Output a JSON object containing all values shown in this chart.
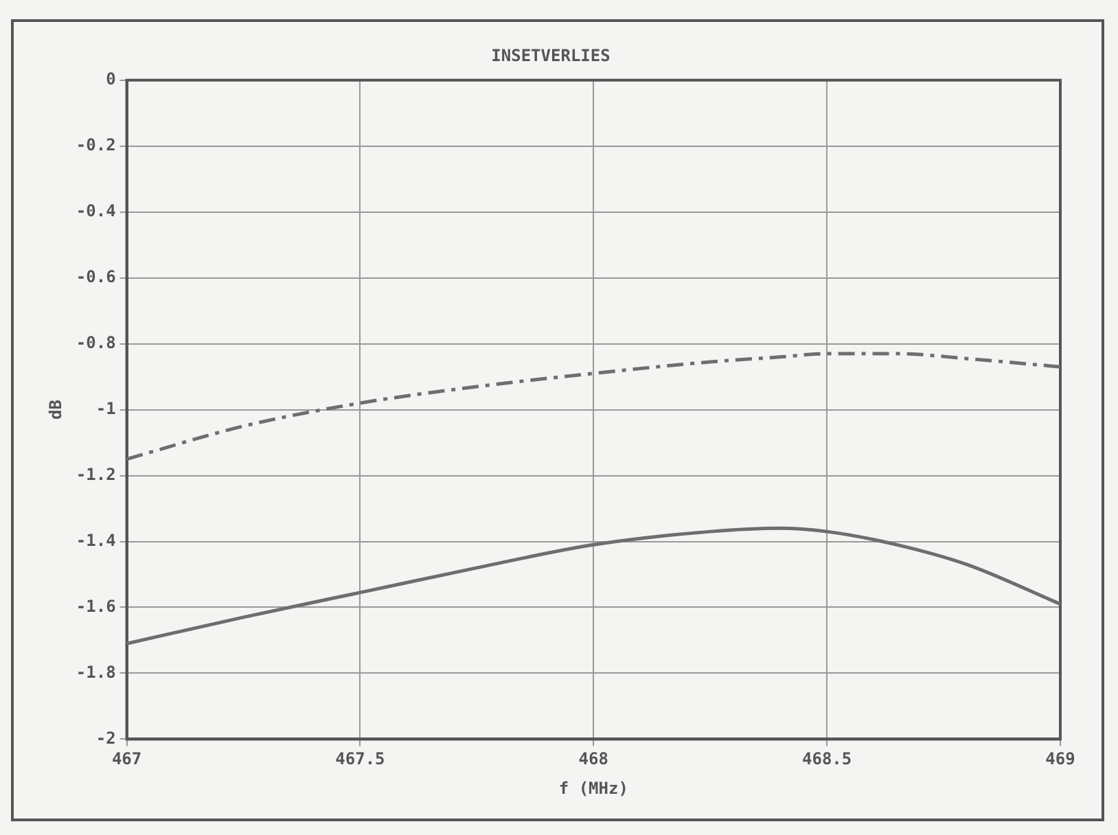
{
  "chart_data": {
    "type": "line",
    "title": "INSETVERLIES",
    "xlabel": "f (MHz)",
    "ylabel": "dB",
    "x": [
      467,
      467.25,
      467.5,
      467.75,
      468,
      468.25,
      468.4,
      468.5,
      468.65,
      468.8,
      469
    ],
    "series": [
      {
        "color": "#6e6e6e",
        "line_style": "solid",
        "values": [
          -1.71,
          -1.63,
          -1.555,
          -1.48,
          -1.41,
          -1.37,
          -1.36,
          -1.37,
          -1.41,
          -1.47,
          -1.59
        ]
      },
      {
        "color": "#6e6e6e",
        "line_style": "dashed",
        "values": [
          -1.15,
          -1.05,
          -0.98,
          -0.93,
          -0.89,
          -0.855,
          -0.84,
          -0.83,
          -0.83,
          -0.845,
          -0.87
        ]
      }
    ],
    "xlim": [
      467,
      469
    ],
    "xticks": [
      467,
      467.5,
      468,
      468.5,
      469
    ],
    "ylim": [
      -2,
      0
    ],
    "yticks": [
      -2,
      -1.8,
      -1.6,
      -1.4,
      -1.2,
      -1,
      -0.8,
      -0.6,
      -0.4,
      -0.2,
      0
    ],
    "grid": true,
    "legend": false,
    "marker": "none"
  }
}
